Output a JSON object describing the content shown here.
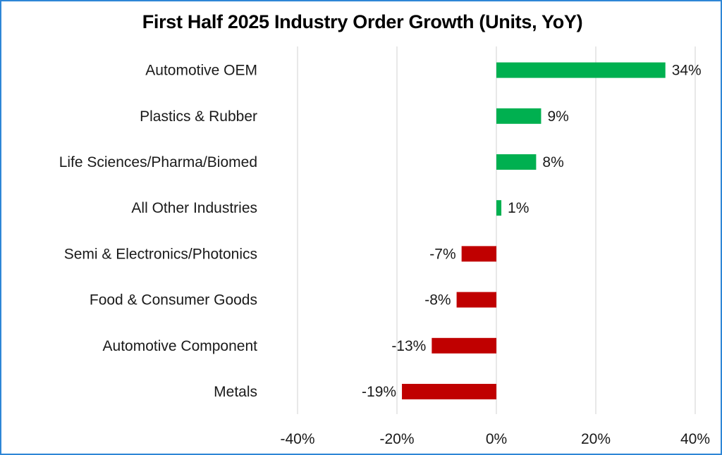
{
  "chart_data": {
    "type": "bar",
    "orientation": "horizontal",
    "title": "First Half 2025 Industry Order Growth (Units, YoY)",
    "xlabel": "",
    "ylabel": "",
    "xlim": [
      -40,
      40
    ],
    "xticks": [
      -40,
      -20,
      0,
      20,
      40
    ],
    "xtick_labels": [
      "-40%",
      "-20%",
      "0%",
      "20%",
      "40%"
    ],
    "grid": "vertical",
    "legend": "none",
    "categories": [
      "Automotive OEM",
      "Plastics & Rubber",
      "Life Sciences/Pharma/Biomed",
      "All Other Industries",
      "Semi & Electronics/Photonics",
      "Food & Consumer Goods",
      "Automotive Component",
      "Metals"
    ],
    "values": [
      34,
      9,
      8,
      1,
      -7,
      -8,
      -13,
      -19
    ],
    "data_labels": [
      "34%",
      "9%",
      "8%",
      "1%",
      "-7%",
      "-8%",
      "-13%",
      "-19%"
    ],
    "colors": {
      "positive": "#00b050",
      "negative": "#c00000",
      "border": "#2e86d6",
      "grid": "#d9d9d9"
    }
  }
}
